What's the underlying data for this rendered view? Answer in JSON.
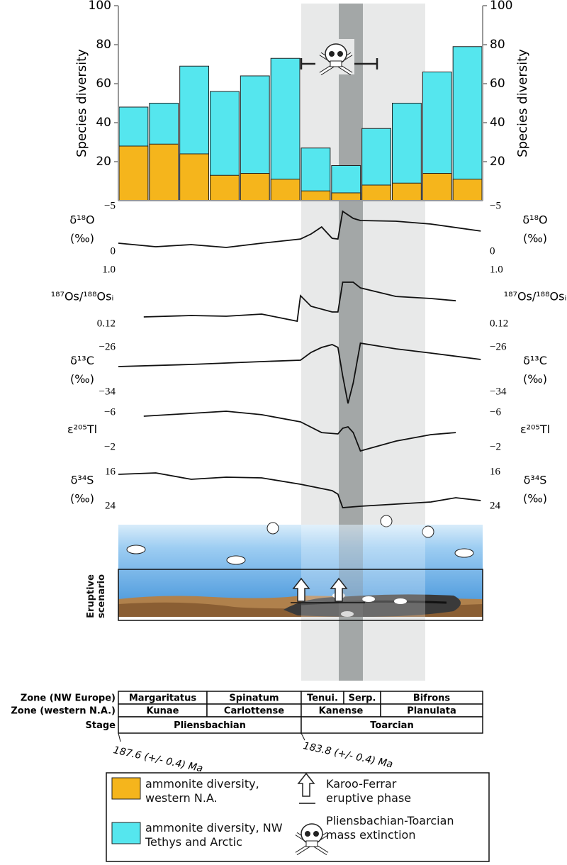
{
  "chart_data": [
    {
      "type": "bar",
      "ylabel": "Species diversity",
      "ylim": [
        0,
        100
      ],
      "yticks": [
        20,
        40,
        60,
        80,
        100
      ],
      "categories": [
        null,
        null,
        null,
        null,
        null,
        null,
        null,
        null,
        null,
        null,
        null,
        null
      ],
      "series": [
        {
          "name": "ammonite diversity, western N.A.",
          "color": "#f5b51c",
          "values": [
            28,
            29,
            24,
            13,
            14,
            11,
            5,
            4,
            8,
            9,
            14,
            11
          ]
        },
        {
          "name": "ammonite diversity, NW Tethys and Arctic",
          "color": "#55e6ee",
          "values": [
            48,
            50,
            69,
            56,
            64,
            73,
            27,
            18,
            37,
            50,
            66,
            79
          ]
        }
      ]
    },
    {
      "type": "line",
      "ylabel": "δ¹⁸O",
      "unit": "(‰)",
      "ylim": [
        0,
        -5
      ],
      "yticks": [
        {
          "value": -5,
          "label": "−5"
        },
        0
      ],
      "xlim": [
        187.6,
        180.0
      ],
      "x": [
        187.6,
        186.82,
        186.08,
        185.35,
        184.61,
        183.8,
        183.58,
        183.36,
        183.14,
        183.02,
        182.92,
        182.7,
        182.55,
        181.81,
        181.08,
        180.04
      ],
      "values": [
        -0.94,
        -0.55,
        -0.78,
        -0.47,
        -0.94,
        -1.4,
        -1.95,
        -2.73,
        -1.48,
        -1.4,
        -4.45,
        -3.67,
        -3.44,
        -3.36,
        -3.05,
        -2.27
      ]
    },
    {
      "type": "line",
      "ylabel": "¹⁸⁷Os/¹⁸⁸Osᵢ",
      "ylim": [
        0.12,
        1.0
      ],
      "yticks": [
        0.12,
        {
          "value": 1.0,
          "label": "1.0"
        }
      ],
      "xlim": [
        187.6,
        180.0
      ],
      "x": [
        187.07,
        186.08,
        185.35,
        184.61,
        183.87,
        183.8,
        183.58,
        183.14,
        183.02,
        182.92,
        182.7,
        182.55,
        181.81,
        181.08,
        180.56
      ],
      "values": [
        0.236,
        0.259,
        0.247,
        0.282,
        0.166,
        0.583,
        0.41,
        0.317,
        0.317,
        0.803,
        0.803,
        0.71,
        0.57,
        0.537,
        0.5
      ]
    },
    {
      "type": "line",
      "ylabel": "δ¹³C",
      "unit": "(‰)",
      "ylim": [
        -34,
        -26
      ],
      "yticks": [
        {
          "value": -26,
          "label": "−26"
        },
        {
          "value": -34,
          "label": "−34"
        }
      ],
      "xlim": [
        187.6,
        180.0
      ],
      "x": [
        187.6,
        186.08,
        184.61,
        183.8,
        183.58,
        183.36,
        183.14,
        183.02,
        182.92,
        182.81,
        182.7,
        182.55,
        181.81,
        181.08,
        180.04
      ],
      "values": [
        -29.43,
        -29.05,
        -28.54,
        -28.29,
        -26.89,
        -26.0,
        -25.49,
        -26.0,
        -31.08,
        -36.03,
        -32.35,
        -25.24,
        -26.25,
        -27.02,
        -28.16
      ]
    },
    {
      "type": "line",
      "ylabel": "ε²⁰⁵Tl",
      "ylim": [
        -2,
        -6
      ],
      "yticks": [
        {
          "value": -6,
          "label": "−6"
        },
        {
          "value": -2,
          "label": "−2"
        }
      ],
      "xlim": [
        187.6,
        180.0
      ],
      "x": [
        187.07,
        186.08,
        185.35,
        184.61,
        183.8,
        183.36,
        183.02,
        182.92,
        182.81,
        182.7,
        182.55,
        181.81,
        181.08,
        180.56
      ],
      "values": [
        -5.59,
        -5.92,
        -6.16,
        -5.76,
        -4.94,
        -3.71,
        -3.55,
        -4.2,
        -4.37,
        -3.71,
        -1.59,
        -2.73,
        -3.47,
        -3.71
      ]
    },
    {
      "type": "line",
      "ylabel": "δ³⁴S",
      "unit": "(‰)",
      "ylim": [
        24,
        16
      ],
      "yticks": [
        16,
        24
      ],
      "xlim": [
        187.6,
        180.0
      ],
      "x": [
        187.6,
        186.82,
        186.08,
        185.35,
        184.61,
        183.8,
        183.14,
        183.02,
        182.92,
        182.55,
        181.81,
        181.08,
        180.56,
        180.04
      ],
      "values": [
        16.5,
        16.17,
        17.67,
        17.17,
        17.33,
        18.83,
        20.33,
        21.17,
        24.33,
        24.0,
        23.5,
        23.0,
        22.0,
        22.67
      ]
    }
  ],
  "eruptive_scenario": "Eruptive scenario",
  "zones": [
    {
      "label": "Zone (NW Europe)",
      "cells": [
        "Margaritatus",
        "Spinatum",
        "Tenui.",
        "Serp.",
        "Bifrons"
      ]
    },
    {
      "label": "Zone (western N.A.)",
      "cells": [
        "Kunae",
        "Carlottense",
        "Kanense",
        "Planulata"
      ]
    },
    {
      "label": "Stage",
      "cells": [
        "Pliensbachian",
        "Toarcian"
      ]
    }
  ],
  "ages": [
    "187.6 (+/- 0.4) Ma",
    "183.8 (+/- 0.4) Ma"
  ],
  "legend": [
    "Karoo-Ferrar eruptive phase",
    "Pliensbachian-Toarcian mass extinction"
  ]
}
